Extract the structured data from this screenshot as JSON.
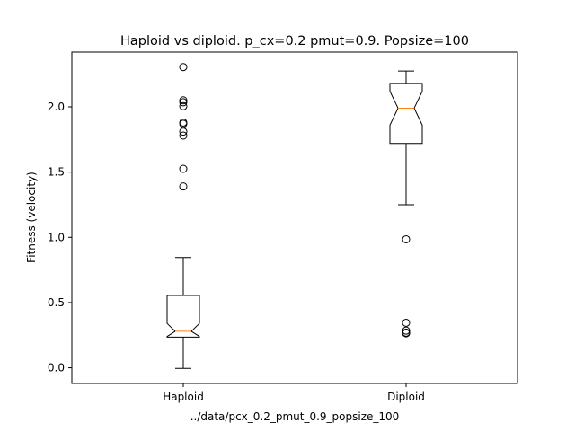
{
  "chart_data": {
    "type": "boxplot",
    "title": "Haploid vs diploid. p_cx=0.2 pmut=0.9. Popsize=100",
    "xlabel": "../data/pcx_0.2_pmut_0.9_popsize_100",
    "ylabel": "Fitness (velocity)",
    "ylim": [
      -0.12,
      2.42
    ],
    "yticks": [
      0.0,
      0.5,
      1.0,
      1.5,
      2.0
    ],
    "ytick_labels": [
      "0.0",
      "0.5",
      "1.0",
      "1.5",
      "2.0"
    ],
    "notched": true,
    "grid": false,
    "categories": [
      "Haploid",
      "Diploid"
    ],
    "boxes": [
      {
        "label": "Haploid",
        "whisker_low": -0.005,
        "q1": 0.235,
        "median": 0.28,
        "q3": 0.555,
        "whisker_high": 0.845,
        "notch_low": 0.24,
        "notch_high": 0.34,
        "outliers": [
          2.305,
          2.05,
          2.035,
          2.005,
          1.88,
          1.87,
          1.81,
          1.78,
          1.525,
          1.39
        ]
      },
      {
        "label": "Diploid",
        "whisker_low": 1.25,
        "q1": 1.72,
        "median": 1.99,
        "q3": 2.18,
        "whisker_high": 2.275,
        "notch_low": 1.86,
        "notch_high": 2.12,
        "outliers": [
          0.985,
          0.345,
          0.285,
          0.27,
          0.265
        ]
      }
    ],
    "colors": {
      "box": "#000000",
      "median": "#ff7f0e",
      "outlier": "#000000"
    }
  }
}
